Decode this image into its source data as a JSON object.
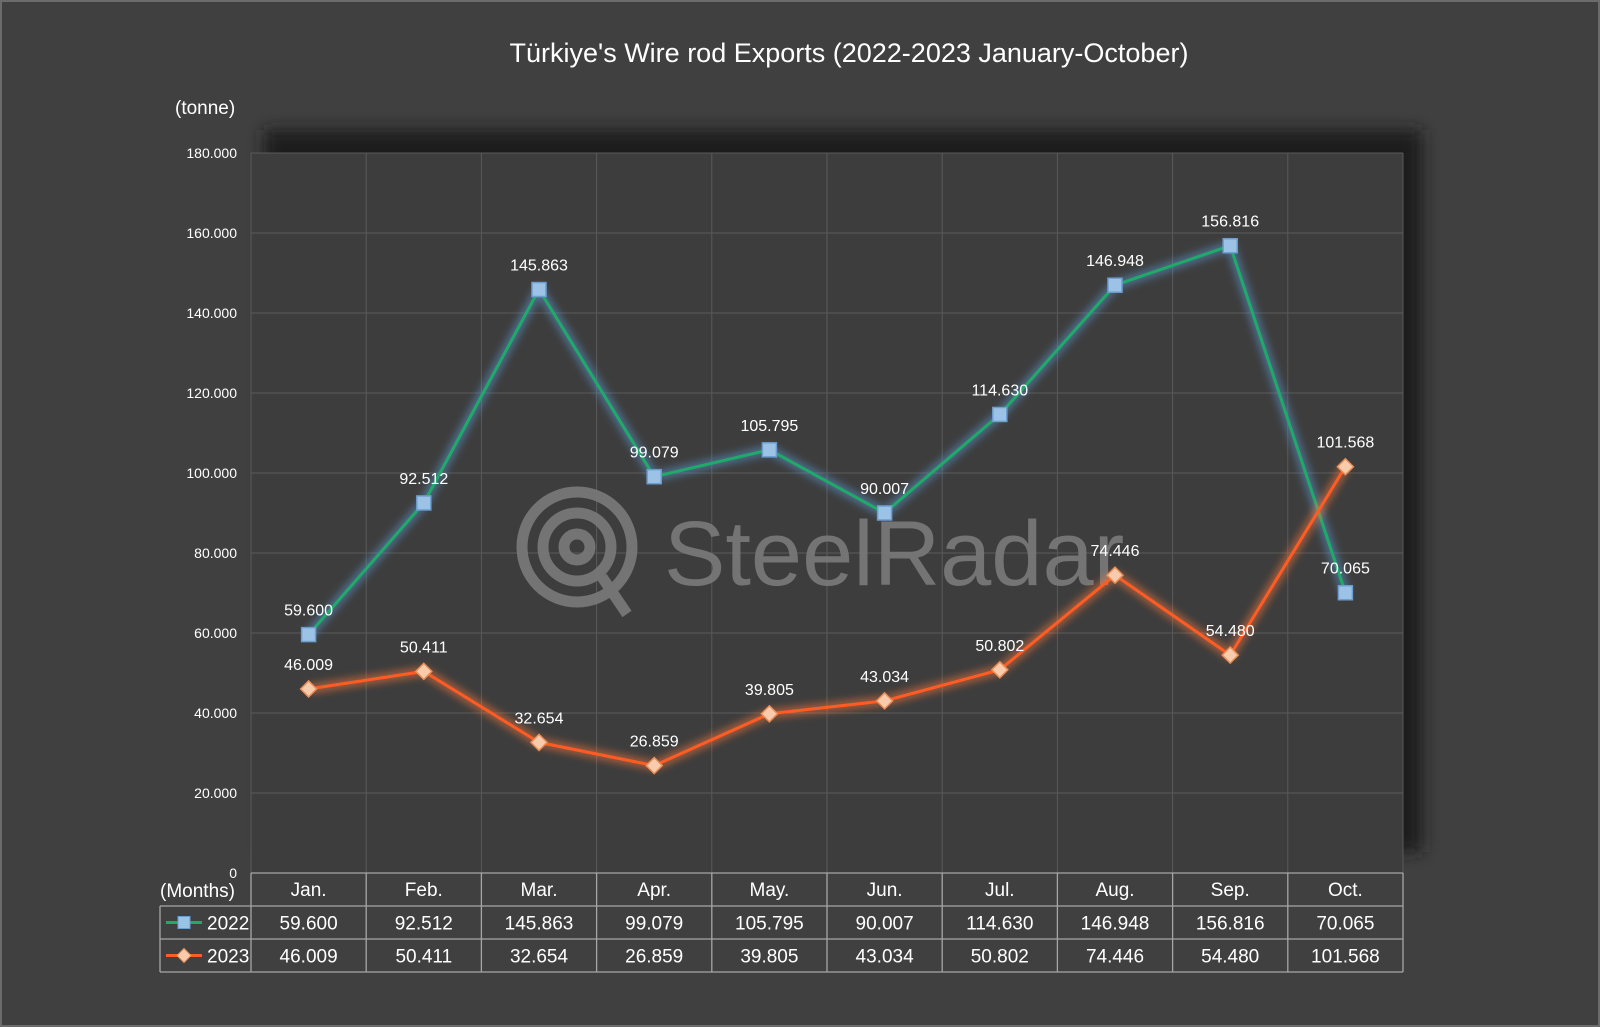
{
  "colors": {
    "background": "#404040",
    "plot_area": "#3b3b3b",
    "gridline": "#5a5a5a",
    "text": "#ffffff",
    "series_2022_line": "#1faa6a",
    "series_2022_marker": "#9cc2e5",
    "series_2022_glow": "#5b9bd5",
    "series_2023_line": "#ff5b24",
    "series_2023_marker": "#f8cbad",
    "series_2023_glow": "#ff7a3c",
    "watermark": "#7a7a7a"
  },
  "watermark_text": "SteelRadar",
  "chart_data": {
    "type": "line",
    "title": "Türkiye's Wire rod Exports (2022-2023 January-October)",
    "ylabel": "(tonne)",
    "xlabel": "(Months)",
    "categories": [
      "Jan.",
      "Feb.",
      "Mar.",
      "Apr.",
      "May.",
      "Jun.",
      "Jul.",
      "Aug.",
      "Sep.",
      "Oct."
    ],
    "ylim": [
      0,
      180000
    ],
    "yticks": [
      0,
      20000,
      40000,
      60000,
      80000,
      100000,
      120000,
      140000,
      160000,
      180000
    ],
    "ytick_labels": [
      "0",
      "20.000",
      "40.000",
      "60.000",
      "80.000",
      "100.000",
      "120.000",
      "140.000",
      "160.000",
      "180.000"
    ],
    "grid": true,
    "legend": "data-table",
    "series": [
      {
        "name": "2022",
        "marker": "square",
        "values": [
          59600,
          92512,
          145863,
          99079,
          105795,
          90007,
          114630,
          146948,
          156816,
          70065
        ],
        "labels": [
          "59.600",
          "92.512",
          "145.863",
          "99.079",
          "105.795",
          "90.007",
          "114.630",
          "146.948",
          "156.816",
          "70.065"
        ]
      },
      {
        "name": "2023",
        "marker": "diamond",
        "values": [
          46009,
          50411,
          32654,
          26859,
          39805,
          43034,
          50802,
          74446,
          54480,
          101568
        ],
        "labels": [
          "46.009",
          "50.411",
          "32.654",
          "26.859",
          "39.805",
          "43.034",
          "50.802",
          "74.446",
          "54.480",
          "101.568"
        ]
      }
    ]
  }
}
